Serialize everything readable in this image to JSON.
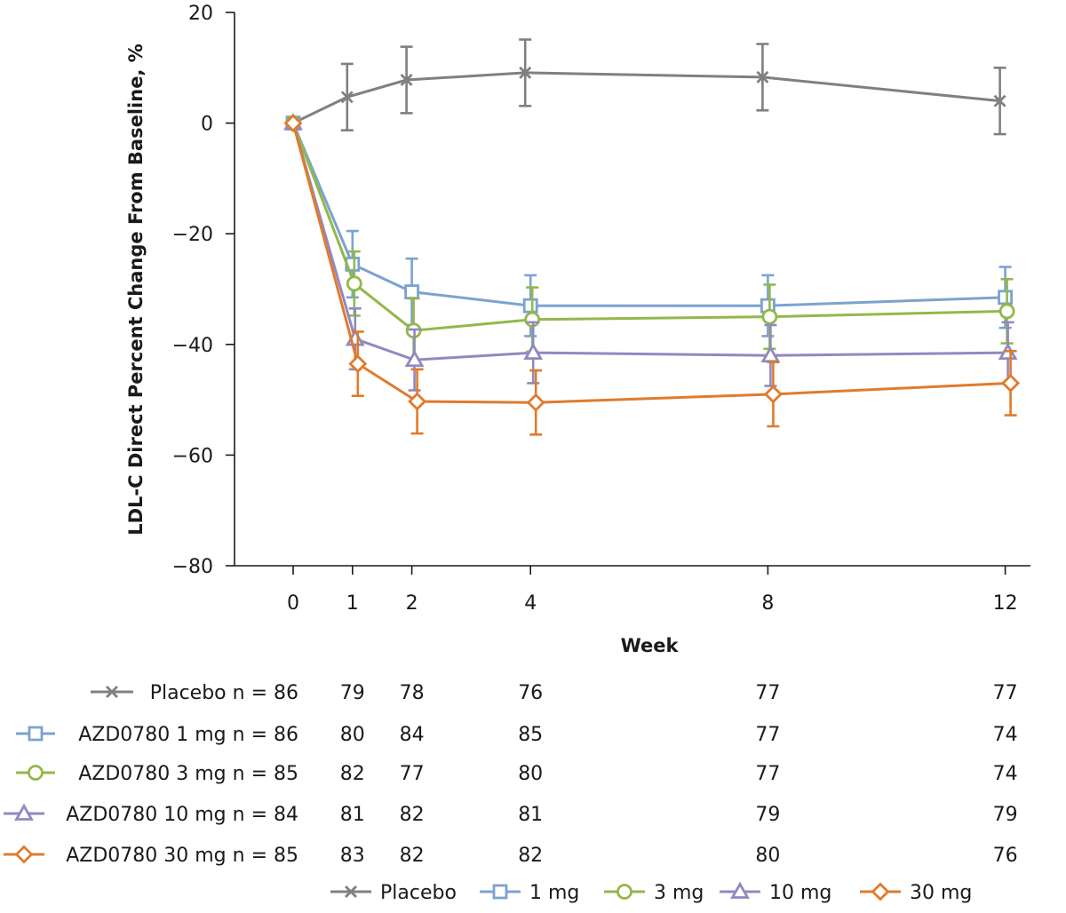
{
  "chart_data": {
    "type": "line",
    "title": "",
    "xlabel": "Week",
    "ylabel": "LDL-C Direct Percent Change From Baseline, %",
    "x": [
      0,
      1,
      2,
      4,
      8,
      12
    ],
    "x_tick_labels": [
      "0",
      "1",
      "2",
      "4",
      "8",
      "12"
    ],
    "ylim": [
      -80,
      20
    ],
    "y_ticks": [
      20,
      0,
      -20,
      -40,
      -60,
      -80
    ],
    "y_tick_labels": [
      "20",
      "0",
      "−20",
      "−40",
      "−60",
      "−80"
    ],
    "grid": false,
    "legend_position": "bottom",
    "series": [
      {
        "name": "Placebo",
        "marker": "x",
        "color": "#808080",
        "values": [
          0,
          4.7,
          7.8,
          9.1,
          8.3,
          4.0
        ],
        "error": [
          0,
          6.0,
          6.0,
          6.0,
          6.0,
          6.0
        ]
      },
      {
        "name": "1 mg",
        "marker": "square",
        "color": "#7ba3cf",
        "values": [
          0,
          -25.5,
          -30.5,
          -33.0,
          -33.0,
          -31.5
        ],
        "error": [
          0,
          6.0,
          6.0,
          5.5,
          5.5,
          5.5
        ]
      },
      {
        "name": "3 mg",
        "marker": "circle",
        "color": "#92b84a",
        "values": [
          0,
          -29.0,
          -37.5,
          -35.5,
          -35.0,
          -34.0
        ],
        "error": [
          0,
          5.8,
          5.8,
          5.8,
          5.8,
          5.8
        ]
      },
      {
        "name": "10 mg",
        "marker": "triangle",
        "color": "#9189c0",
        "values": [
          0,
          -39.0,
          -42.8,
          -41.5,
          -42.0,
          -41.5
        ],
        "error": [
          0,
          5.5,
          5.5,
          5.5,
          5.5,
          5.5
        ]
      },
      {
        "name": "30 mg",
        "marker": "diamond",
        "color": "#e07b2c",
        "values": [
          0,
          -43.5,
          -50.3,
          -50.5,
          -49.0,
          -47.0
        ],
        "error": [
          0,
          5.8,
          5.8,
          5.8,
          5.8,
          5.8
        ]
      }
    ],
    "counts_table": [
      {
        "label": "Placebo n = 86",
        "marker": "x",
        "color": "#808080",
        "counts": [
          "79",
          "78",
          "76",
          "77",
          "77"
        ]
      },
      {
        "label": "AZD0780 1 mg n = 86",
        "marker": "square",
        "color": "#7ba3cf",
        "counts": [
          "80",
          "84",
          "85",
          "77",
          "74"
        ]
      },
      {
        "label": "AZD0780 3 mg n = 85",
        "marker": "circle",
        "color": "#92b84a",
        "counts": [
          "82",
          "77",
          "80",
          "77",
          "74"
        ]
      },
      {
        "label": "AZD0780 10 mg n = 84",
        "marker": "triangle",
        "color": "#9189c0",
        "counts": [
          "81",
          "82",
          "81",
          "79",
          "79"
        ]
      },
      {
        "label": "AZD0780 30 mg n = 85",
        "marker": "diamond",
        "color": "#e07b2c",
        "counts": [
          "83",
          "82",
          "82",
          "80",
          "76"
        ]
      }
    ],
    "legend": [
      {
        "label": "Placebo",
        "marker": "x",
        "color": "#808080"
      },
      {
        "label": "1 mg",
        "marker": "square",
        "color": "#7ba3cf"
      },
      {
        "label": "3 mg",
        "marker": "circle",
        "color": "#92b84a"
      },
      {
        "label": "10 mg",
        "marker": "triangle",
        "color": "#9189c0"
      },
      {
        "label": "30 mg",
        "marker": "diamond",
        "color": "#e07b2c"
      }
    ]
  }
}
